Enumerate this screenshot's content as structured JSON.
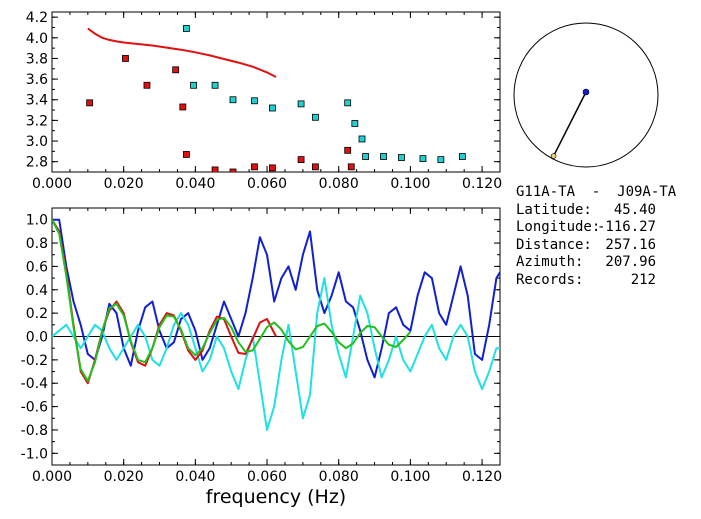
{
  "chart_data": [
    {
      "type": "scatter",
      "xlim": [
        0.0,
        0.125
      ],
      "ylim": [
        2.7,
        4.25
      ],
      "x_ticks": [
        "0.000",
        "0.020",
        "0.040",
        "0.060",
        "0.080",
        "0.100",
        "0.120"
      ],
      "y_ticks": [
        "2.8",
        "3.0",
        "3.2",
        "3.4",
        "3.6",
        "3.8",
        "4.0",
        "4.2"
      ],
      "series": [
        {
          "color": "#e01010",
          "mark": "line",
          "x": [
            0.01,
            0.012,
            0.014,
            0.016,
            0.018,
            0.02,
            0.024,
            0.028,
            0.032,
            0.036,
            0.04,
            0.044,
            0.048,
            0.052,
            0.056,
            0.06,
            0.0625
          ],
          "y": [
            4.09,
            4.04,
            4.0,
            3.98,
            3.965,
            3.955,
            3.94,
            3.925,
            3.905,
            3.885,
            3.86,
            3.83,
            3.795,
            3.76,
            3.72,
            3.665,
            3.62
          ]
        },
        {
          "color": "#e01010",
          "mark": "square",
          "x": [
            0.0105,
            0.0205,
            0.0265,
            0.0345,
            0.0365,
            0.0375,
            0.0455,
            0.0505,
            0.0565,
            0.0615,
            0.0695,
            0.0735,
            0.0825,
            0.0835
          ],
          "y": [
            3.37,
            3.8,
            3.54,
            3.69,
            3.33,
            2.87,
            2.72,
            2.7,
            2.75,
            2.74,
            2.82,
            2.75,
            2.91,
            2.75
          ]
        },
        {
          "color": "#20d0d0",
          "mark": "square",
          "x": [
            0.0375,
            0.0395,
            0.0455,
            0.0505,
            0.0565,
            0.0615,
            0.0695,
            0.0735,
            0.0825,
            0.0845,
            0.0865,
            0.0875,
            0.0925,
            0.0975,
            0.1035,
            0.1085,
            0.1145
          ],
          "y": [
            4.09,
            3.54,
            3.54,
            3.4,
            3.39,
            3.32,
            3.36,
            3.23,
            3.37,
            3.17,
            3.02,
            2.85,
            2.85,
            2.84,
            2.83,
            2.82,
            2.85
          ]
        }
      ]
    },
    {
      "type": "line",
      "xlabel": "frequency (Hz)",
      "xlim": [
        0.0,
        0.125
      ],
      "ylim": [
        -1.1,
        1.1
      ],
      "x_ticks": [
        "0.000",
        "0.020",
        "0.040",
        "0.060",
        "0.080",
        "0.100",
        "0.120"
      ],
      "y_ticks": [
        "1.0",
        "0.8",
        "0.6",
        "0.4",
        "0.2",
        "0.0",
        "-0.2",
        "-0.4",
        "-0.6",
        "-0.8",
        "-1.0"
      ],
      "zero_line": true,
      "series": [
        {
          "color": "#1020d0",
          "x": [
            0.0,
            0.002,
            0.004,
            0.006,
            0.008,
            0.01,
            0.012,
            0.014,
            0.016,
            0.018,
            0.02,
            0.022,
            0.024,
            0.026,
            0.028,
            0.03,
            0.032,
            0.034,
            0.036,
            0.038,
            0.04,
            0.042,
            0.044,
            0.046,
            0.048,
            0.05,
            0.052,
            0.054,
            0.056,
            0.058,
            0.06,
            0.062,
            0.064,
            0.066,
            0.068,
            0.07,
            0.072,
            0.074,
            0.076,
            0.078,
            0.08,
            0.082,
            0.084,
            0.086,
            0.088,
            0.09,
            0.092,
            0.094,
            0.096,
            0.098,
            0.1,
            0.102,
            0.104,
            0.106,
            0.108,
            0.11,
            0.112,
            0.114,
            0.116,
            0.118,
            0.12,
            0.122,
            0.124,
            0.125
          ],
          "y": [
            1.0,
            1.0,
            0.6,
            0.3,
            0.1,
            -0.15,
            -0.2,
            0.0,
            0.28,
            0.2,
            -0.1,
            -0.25,
            0.05,
            0.25,
            0.3,
            0.05,
            -0.1,
            -0.05,
            0.15,
            0.2,
            0.05,
            -0.2,
            -0.1,
            0.1,
            0.3,
            0.15,
            0.0,
            0.2,
            0.5,
            0.85,
            0.7,
            0.3,
            0.5,
            0.6,
            0.4,
            0.7,
            0.9,
            0.4,
            0.2,
            0.35,
            0.55,
            0.3,
            0.25,
            0.05,
            -0.2,
            -0.35,
            -0.1,
            0.2,
            0.25,
            0.1,
            0.05,
            0.35,
            0.55,
            0.5,
            0.2,
            0.1,
            0.35,
            0.6,
            0.35,
            -0.15,
            -0.2,
            0.1,
            0.5,
            0.55
          ]
        },
        {
          "color": "#20e0e0",
          "x": [
            0.0,
            0.002,
            0.004,
            0.006,
            0.008,
            0.01,
            0.012,
            0.014,
            0.016,
            0.018,
            0.02,
            0.022,
            0.024,
            0.026,
            0.028,
            0.03,
            0.032,
            0.034,
            0.036,
            0.038,
            0.04,
            0.042,
            0.044,
            0.046,
            0.048,
            0.05,
            0.052,
            0.054,
            0.056,
            0.058,
            0.06,
            0.062,
            0.064,
            0.066,
            0.068,
            0.07,
            0.072,
            0.074,
            0.076,
            0.078,
            0.08,
            0.082,
            0.084,
            0.086,
            0.088,
            0.09,
            0.092,
            0.094,
            0.096,
            0.098,
            0.1,
            0.102,
            0.104,
            0.106,
            0.108,
            0.11,
            0.112,
            0.114,
            0.116,
            0.118,
            0.12,
            0.122,
            0.124,
            0.125
          ],
          "y": [
            0.0,
            0.05,
            0.1,
            0.0,
            -0.1,
            0.0,
            0.1,
            0.05,
            -0.1,
            -0.2,
            -0.1,
            0.0,
            0.1,
            0.0,
            -0.2,
            -0.25,
            -0.1,
            0.1,
            0.2,
            0.1,
            -0.1,
            -0.3,
            -0.2,
            0.0,
            -0.1,
            -0.3,
            -0.45,
            -0.2,
            0.0,
            -0.4,
            -0.8,
            -0.6,
            -0.2,
            0.1,
            -0.3,
            -0.7,
            -0.5,
            0.2,
            0.5,
            0.1,
            -0.15,
            -0.35,
            0.0,
            0.35,
            0.2,
            -0.1,
            -0.35,
            -0.2,
            0.0,
            -0.2,
            -0.3,
            -0.15,
            0.0,
            0.1,
            -0.1,
            -0.2,
            0.0,
            0.1,
            0.0,
            -0.3,
            -0.45,
            -0.3,
            -0.1,
            -0.1
          ]
        },
        {
          "color": "#e01010",
          "x": [
            0.0,
            0.002,
            0.004,
            0.006,
            0.008,
            0.01,
            0.012,
            0.014,
            0.016,
            0.018,
            0.02,
            0.022,
            0.024,
            0.026,
            0.028,
            0.03,
            0.032,
            0.034,
            0.036,
            0.038,
            0.04,
            0.042,
            0.044,
            0.046,
            0.048,
            0.05,
            0.052,
            0.054,
            0.056,
            0.058,
            0.06,
            0.0625
          ],
          "y": [
            1.0,
            0.9,
            0.55,
            0.1,
            -0.3,
            -0.4,
            -0.2,
            0.05,
            0.22,
            0.3,
            0.2,
            -0.05,
            -0.22,
            -0.25,
            -0.1,
            0.1,
            0.2,
            0.18,
            0.05,
            -0.12,
            -0.2,
            -0.12,
            0.05,
            0.17,
            0.15,
            0.0,
            -0.14,
            -0.15,
            -0.02,
            0.12,
            0.15,
            0.0
          ]
        },
        {
          "color": "#20c020",
          "x": [
            0.0,
            0.002,
            0.004,
            0.006,
            0.008,
            0.01,
            0.012,
            0.014,
            0.016,
            0.018,
            0.02,
            0.022,
            0.024,
            0.026,
            0.028,
            0.03,
            0.032,
            0.034,
            0.036,
            0.038,
            0.04,
            0.042,
            0.044,
            0.046,
            0.048,
            0.05,
            0.052,
            0.054,
            0.056,
            0.058,
            0.06,
            0.062,
            0.064,
            0.066,
            0.068,
            0.07,
            0.072,
            0.074,
            0.076,
            0.078,
            0.08,
            0.082,
            0.084,
            0.086,
            0.088,
            0.09,
            0.092,
            0.094,
            0.096,
            0.098,
            0.1
          ],
          "y": [
            1.0,
            0.88,
            0.52,
            0.08,
            -0.28,
            -0.38,
            -0.22,
            0.05,
            0.24,
            0.28,
            0.18,
            -0.04,
            -0.2,
            -0.22,
            -0.1,
            0.08,
            0.18,
            0.17,
            0.06,
            -0.1,
            -0.16,
            -0.1,
            0.03,
            0.14,
            0.16,
            0.08,
            -0.05,
            -0.13,
            -0.12,
            -0.02,
            0.08,
            0.12,
            0.06,
            -0.04,
            -0.11,
            -0.09,
            0.0,
            0.09,
            0.11,
            0.04,
            -0.05,
            -0.1,
            -0.06,
            0.03,
            0.09,
            0.08,
            0.0,
            -0.07,
            -0.09,
            -0.03,
            0.04
          ]
        }
      ]
    }
  ],
  "azimuth_dial": {
    "azimuth_deg": 207.96,
    "station_color": "#1a1acc",
    "source_color": "#e8d080"
  },
  "info": {
    "title": "G11A-TA  -  J09A-TA",
    "rows": [
      {
        "label": "Latitude:",
        "value": "45.40"
      },
      {
        "label": "Longitude:",
        "value": "-116.27"
      },
      {
        "label": "Distance:",
        "value": "257.16"
      },
      {
        "label": "Azimuth:",
        "value": "207.96"
      },
      {
        "label": "Records:",
        "value": "212"
      }
    ]
  }
}
